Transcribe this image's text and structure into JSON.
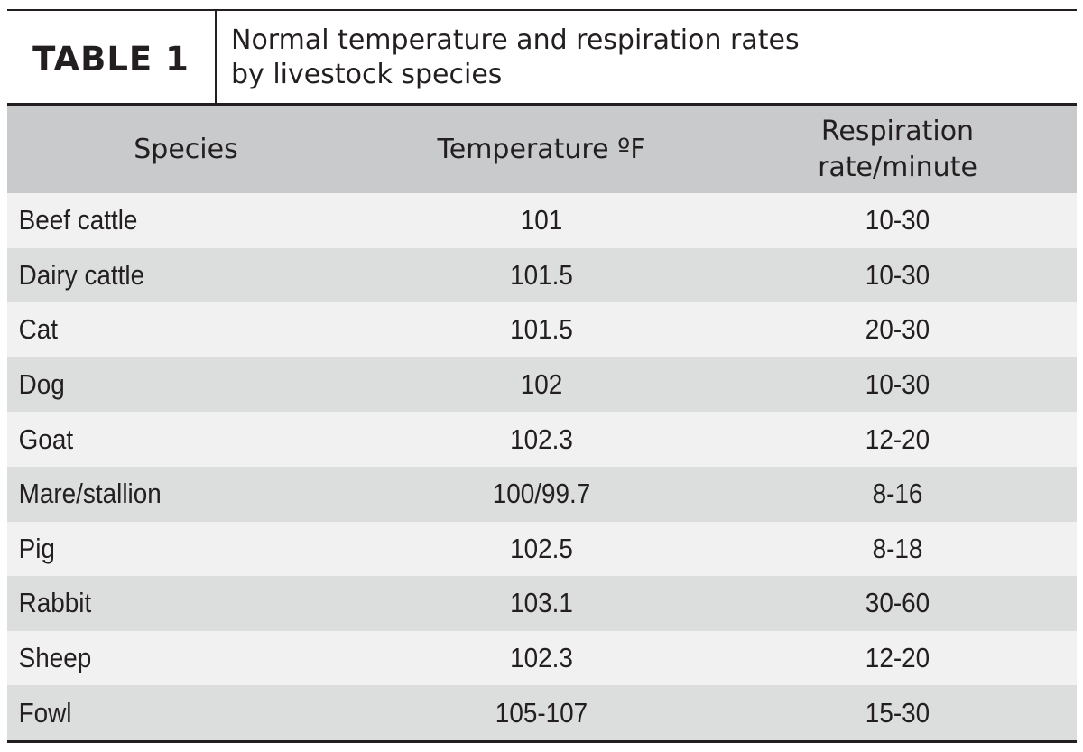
{
  "table": {
    "label": "TABLE 1",
    "title_line1": "Normal temperature and respiration rates",
    "title_line2": "by livestock species",
    "headers": {
      "species": "Species",
      "temperature": "Temperature ºF",
      "respiration_line1": "Respiration",
      "respiration_line2": "rate/minute"
    },
    "rows": [
      {
        "species": "Beef cattle",
        "temperature": "101",
        "respiration": "10-30"
      },
      {
        "species": "Dairy cattle",
        "temperature": "101.5",
        "respiration": "10-30"
      },
      {
        "species": "Cat",
        "temperature": "101.5",
        "respiration": "20-30"
      },
      {
        "species": "Dog",
        "temperature": "102",
        "respiration": "10-30"
      },
      {
        "species": "Goat",
        "temperature": "102.3",
        "respiration": "12-20"
      },
      {
        "species": "Mare/stallion",
        "temperature": "100/99.7",
        "respiration": "8-16"
      },
      {
        "species": "Pig",
        "temperature": "102.5",
        "respiration": "8-18"
      },
      {
        "species": "Rabbit",
        "temperature": "103.1",
        "respiration": "30-60"
      },
      {
        "species": "Sheep",
        "temperature": "102.3",
        "respiration": "12-20"
      },
      {
        "species": "Fowl",
        "temperature": "105-107",
        "respiration": "15-30"
      }
    ]
  }
}
